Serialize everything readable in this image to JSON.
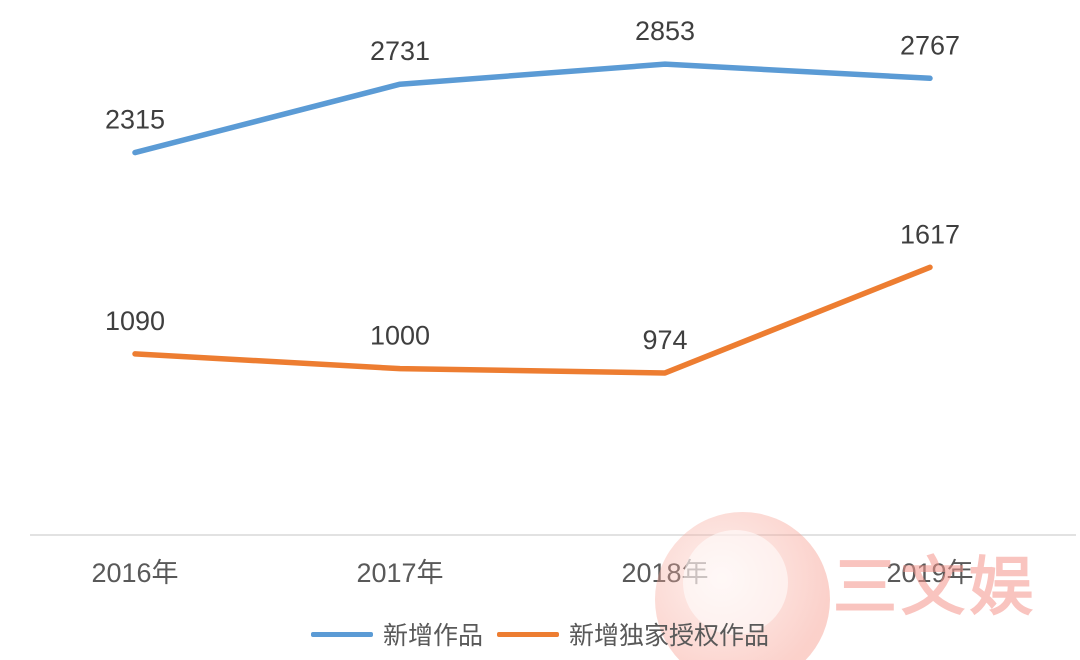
{
  "chart_data": {
    "type": "line",
    "title": "",
    "xlabel": "",
    "ylabel": "",
    "categories": [
      "2016年",
      "2017年",
      "2018年",
      "2019年"
    ],
    "series": [
      {
        "name": "新增作品",
        "values": [
          2315,
          2731,
          2853,
          2767
        ],
        "color": "#5B9BD5"
      },
      {
        "name": "新增独家授权作品",
        "values": [
          1090,
          1000,
          974,
          1617
        ],
        "color": "#ED7D31"
      }
    ],
    "ylim": [
      0,
      3000
    ],
    "grid": false,
    "legend_position": "bottom",
    "axis_color": "#D9D9D9",
    "value_label_color": "#3F3F3F",
    "category_label_color": "#595959"
  },
  "watermark": {
    "text": "三文娱"
  }
}
